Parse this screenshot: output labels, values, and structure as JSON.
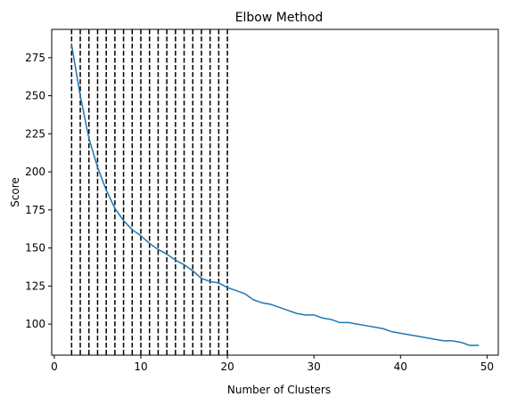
{
  "chart_data": {
    "type": "line",
    "title": "Elbow Method",
    "xlabel": "Number of Clusters",
    "ylabel": "Score",
    "xlim": [
      -0.3,
      51.3
    ],
    "ylim": [
      79.6,
      293.6
    ],
    "xticks": [
      0,
      10,
      20,
      30,
      40,
      50
    ],
    "yticks": [
      100,
      125,
      150,
      175,
      200,
      225,
      250,
      275
    ],
    "grid": false,
    "legend": "none",
    "colors": {
      "line": "#1f77b4",
      "vlines": "#000000"
    },
    "vertical_lines": {
      "style": "dashed",
      "x": [
        2,
        3,
        4,
        5,
        6,
        7,
        8,
        9,
        10,
        11,
        12,
        13,
        14,
        15,
        16,
        17,
        18,
        19,
        20
      ]
    },
    "series": [
      {
        "x": [
          2,
          3,
          4,
          5,
          6,
          7,
          8,
          9,
          10,
          11,
          12,
          13,
          14,
          15,
          16,
          17,
          18,
          19,
          20,
          21,
          22,
          23,
          24,
          25,
          26,
          27,
          28,
          29,
          30,
          31,
          32,
          33,
          34,
          35,
          36,
          37,
          38,
          39,
          40,
          41,
          42,
          43,
          44,
          45,
          46,
          47,
          48,
          49
        ],
        "values": [
          283.5,
          250,
          222,
          203,
          188,
          176,
          168,
          162,
          158,
          153,
          149,
          146,
          142,
          139,
          135,
          130,
          128,
          127,
          124,
          122,
          120,
          116,
          114,
          113,
          111,
          109,
          107,
          106,
          106,
          104,
          103,
          101,
          101,
          100,
          99,
          98,
          97,
          95,
          94,
          93,
          92,
          91,
          90,
          89,
          89,
          88,
          86,
          86
        ]
      }
    ]
  }
}
